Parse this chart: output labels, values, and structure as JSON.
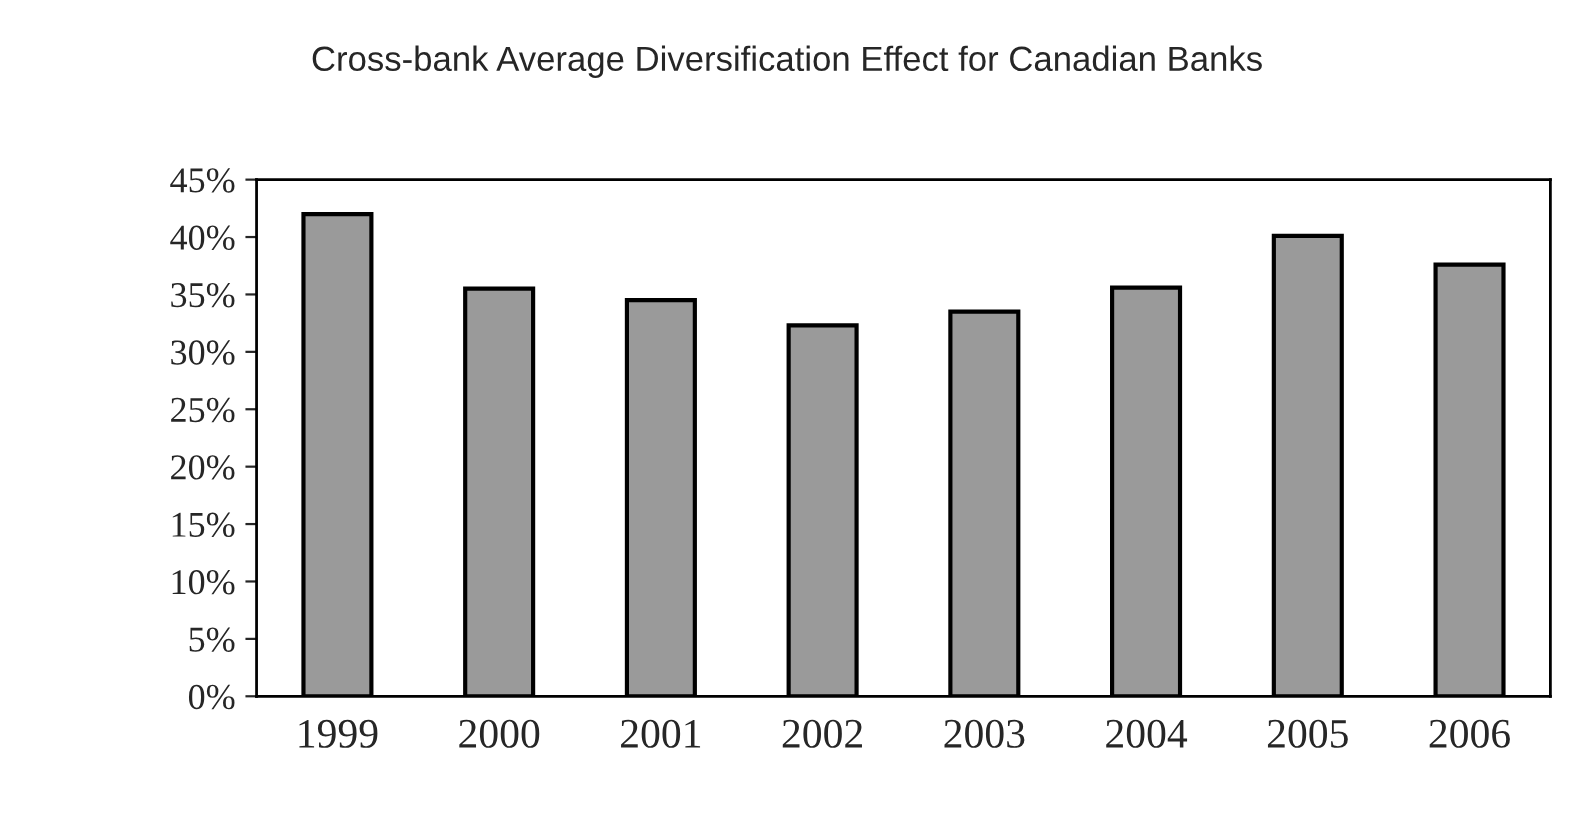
{
  "chart_data": {
    "type": "bar",
    "title": "Cross-bank Average Diversification Effect for Canadian Banks",
    "categories": [
      "1999",
      "2000",
      "2001",
      "2002",
      "2003",
      "2004",
      "2005",
      "2006"
    ],
    "values": [
      42,
      35.5,
      34.5,
      32.3,
      33.5,
      35.6,
      40.1,
      37.6
    ],
    "color": "#9a9a9a",
    "ylim": [
      0,
      45
    ],
    "yticks": [
      {
        "value": 0,
        "label": "0%"
      },
      {
        "value": 5,
        "label": "5%"
      },
      {
        "value": 10,
        "label": "10%"
      },
      {
        "value": 15,
        "label": "15%"
      },
      {
        "value": 20,
        "label": "20%"
      },
      {
        "value": 25,
        "label": "25%"
      },
      {
        "value": 30,
        "label": "30%"
      },
      {
        "value": 35,
        "label": "35%"
      },
      {
        "value": 40,
        "label": "40%"
      },
      {
        "value": 45,
        "label": "45%"
      }
    ],
    "grid": false
  }
}
